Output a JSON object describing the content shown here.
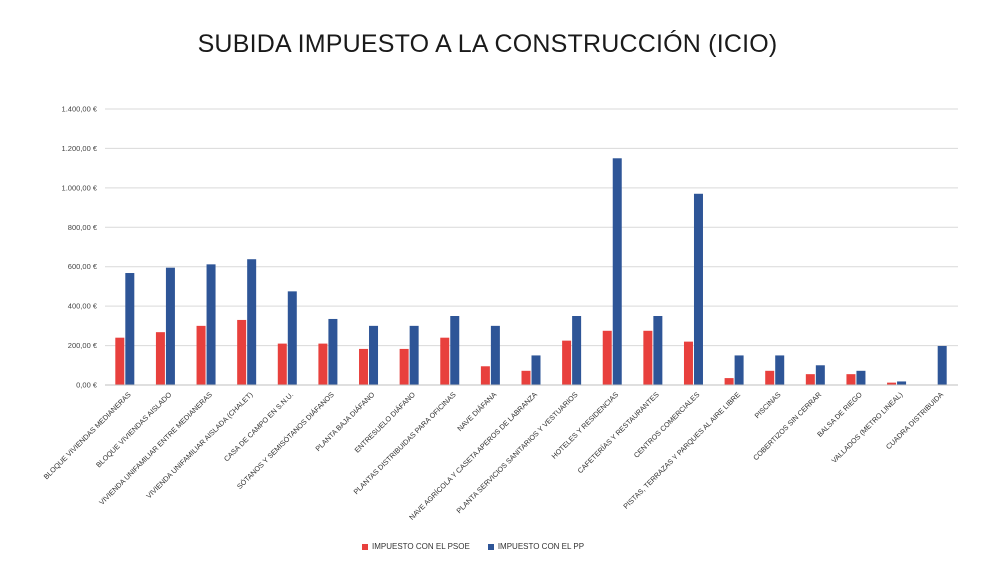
{
  "chart_data": {
    "type": "bar",
    "title": "SUBIDA IMPUESTO A LA CONSTRUCCIÓN (ICIO)",
    "xlabel": "",
    "ylabel": "",
    "ylim": [
      0,
      1400
    ],
    "yticks": [
      0,
      200,
      400,
      600,
      800,
      1000,
      1200,
      1400
    ],
    "ytick_labels": [
      "0,00 €",
      "200,00 €",
      "400,00 €",
      "600,00 €",
      "800,00 €",
      "1.000,00 €",
      "1.200,00 €",
      "1.400,00 €"
    ],
    "grid": true,
    "legend_position": "bottom",
    "categories": [
      "BLOQUE VIVIENDAS MEDIANERAS",
      "BLOQUE VIVIENDAS AISLADO",
      "VIVIENDA UNIFAMILIAR ENTRE MEDIANERAS",
      "VIVIENDA UNIFAMILIAR AISLADA (CHALET)",
      "CASA DE CAMPO EN S.N.U.",
      "SÓTANOS Y SEMISÓTANOS DIÁFANOS",
      "PLANTA BAJA DIÁFANO",
      "ENTRESUELO DIÁFANO",
      "PLANTAS DISTRIBUIDAS PARA OFICINAS",
      "NAVE DIÁFANA",
      "NAVE AGRÍCOLA Y CASETA APEROS DE LABRANZA",
      "PLANTA SERVICIOS SANITARIOS Y VESTUARIOS",
      "HOTELES Y RESIDENCIAS",
      "CAFETERÍAS Y RESTAURANTES",
      "CENTROS COMERCIALES",
      "PISTAS, TERRAZAS Y PARQUES AL AIRE LIBRE",
      "PISCINAS",
      "COBERTIZOS SIN CERRAR",
      "BALSA DE RIEGO",
      "VALLADOS (METRO LINEAL)",
      "CUADRA DISTRIBUIDA"
    ],
    "series": [
      {
        "name": "IMPUESTO CON EL PSOE",
        "color": "#e8403d",
        "values": [
          240,
          268,
          300,
          330,
          210,
          210,
          183,
          183,
          240,
          95,
          72,
          225,
          275,
          275,
          220,
          35,
          72,
          55,
          55,
          12,
          0
        ]
      },
      {
        "name": "IMPUESTO CON EL PP",
        "color": "#2e5597",
        "values": [
          568,
          595,
          612,
          638,
          475,
          335,
          300,
          300,
          350,
          300,
          150,
          350,
          1150,
          350,
          970,
          150,
          150,
          100,
          72,
          18,
          198
        ]
      }
    ]
  }
}
